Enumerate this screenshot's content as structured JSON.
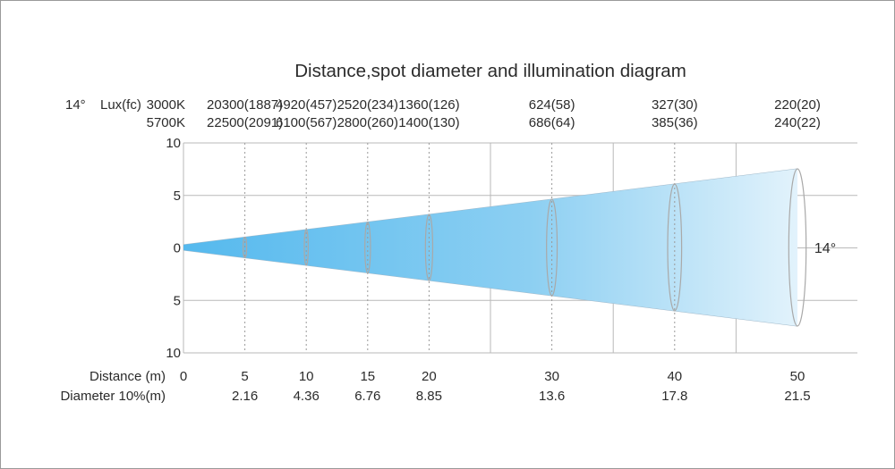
{
  "title": "Distance,spot diameter and illumination diagram",
  "beam_angle_prefix": "14°",
  "lux_unit_label": "Lux(fc)",
  "rows": [
    {
      "temp": "3000K",
      "values": [
        "20300(1887)",
        "4920(457)",
        "2520(234)",
        "1360(126)",
        "624(58)",
        "327(30)",
        "220(20)"
      ]
    },
    {
      "temp": "5700K",
      "values": [
        "22500(2091)",
        "6100(567)",
        "2800(260)",
        "1400(130)",
        "686(64)",
        "385(36)",
        "240(22)"
      ]
    }
  ],
  "y_axis_ticks": [
    "10",
    "5",
    "0",
    "5",
    "10"
  ],
  "beam_angle_label": "14°",
  "distance_label": "Distance  (m)",
  "diameter_label": "Diameter 10%(m)",
  "distances": [
    "0",
    "5",
    "10",
    "15",
    "20",
    "30",
    "40",
    "50"
  ],
  "diameters": [
    "2.16",
    "4.36",
    "6.76",
    "8.85",
    "13.6",
    "17.8",
    "21.5"
  ],
  "colors": {
    "beam_start": "#55b9ee",
    "beam_mid": "#8ccff2",
    "beam_end": "#e6f4fc",
    "grid": "#b9b9b9",
    "ellipse": "#a9a9a9",
    "frame": "#9a9a9a"
  }
}
